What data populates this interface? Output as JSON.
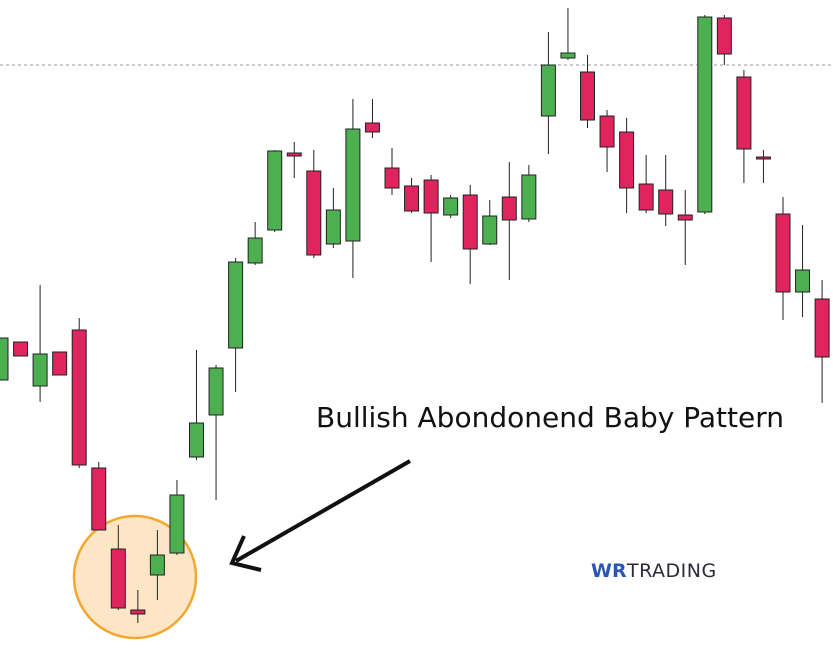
{
  "chart_data": {
    "type": "candlestick",
    "ylim": [
      0,
      664
    ],
    "up_color": "#4caf50",
    "down_color": "#e0245e",
    "reference_line": 599,
    "annotation": "Bullish Abondonend Baby Pattern",
    "watermark": {
      "mark": "WR",
      "name": "TRADING"
    },
    "open": [
      284,
      322,
      278,
      312,
      334,
      196,
      115,
      54,
      89,
      111,
      207,
      249,
      316,
      401,
      434,
      511,
      493,
      420,
      423,
      541,
      496,
      478,
      484,
      449,
      469,
      420,
      467,
      445,
      548,
      606,
      592,
      548,
      532,
      480,
      474,
      449,
      452,
      646,
      587,
      507,
      450,
      372,
      365
    ],
    "high": [
      326,
      322,
      379,
      312,
      346,
      202,
      139,
      74,
      134,
      184,
      314,
      299,
      406,
      442,
      514,
      522,
      514,
      476,
      565,
      565,
      516,
      486,
      489,
      469,
      479,
      464,
      502,
      499,
      632,
      656,
      609,
      554,
      546,
      509,
      509,
      474,
      649,
      649,
      594,
      514,
      467,
      439,
      384
    ],
    "low": [
      284,
      308,
      262,
      289,
      196,
      134,
      54,
      41,
      64,
      109,
      204,
      164,
      272,
      399,
      432,
      486,
      406,
      416,
      386,
      526,
      469,
      451,
      402,
      446,
      380,
      419,
      384,
      442,
      510,
      604,
      536,
      492,
      451,
      451,
      438,
      399,
      450,
      599,
      481,
      481,
      344,
      347,
      261
    ],
    "close": [
      326,
      308,
      310,
      289,
      199,
      134,
      56,
      50,
      109,
      169,
      241,
      296,
      402,
      426,
      513,
      508,
      409,
      454,
      535,
      532,
      476,
      453,
      451,
      466,
      415,
      448,
      444,
      489,
      599,
      611,
      544,
      517,
      476,
      454,
      450,
      444,
      647,
      610,
      515,
      506,
      372,
      394,
      307
    ]
  }
}
